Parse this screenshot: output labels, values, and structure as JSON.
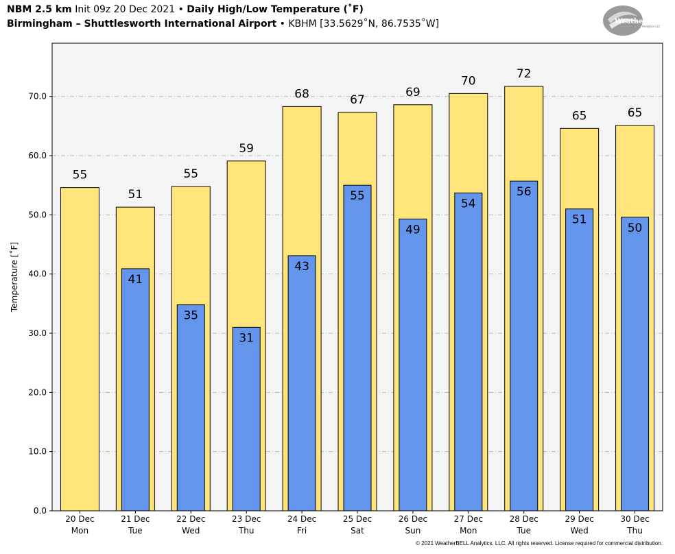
{
  "header": {
    "model": "NBM 2.5 km",
    "init": "Init 09z 20 Dec 2021",
    "separator": "•",
    "product": "Daily High/Low Temperature (˚F)",
    "location": "Birmingham – Shuttlesworth International Airport",
    "station": "KBHM [33.5629˚N, 86.7535˚W]"
  },
  "logo": {
    "text_main": "WeatherBELL",
    "text_sub": "Analytics LLC"
  },
  "copyright": "© 2021 WeatherBELL Analytics, LLC. All rights reserved. License required for commercial distribution.",
  "colors": {
    "high": "#FFE57A",
    "low": "#6495ED",
    "plot_bg": "#F4F4F4",
    "grid": "#BBBBBB"
  },
  "chart_data": {
    "type": "bar",
    "ylabel": "Temperature [˚F]",
    "xlabel": "",
    "ylim": [
      0,
      79
    ],
    "yticks": [
      "0.0",
      "10.0",
      "20.0",
      "30.0",
      "40.0",
      "50.0",
      "60.0",
      "70.0"
    ],
    "grid": true,
    "categories": [
      {
        "date": "20 Dec",
        "day": "Mon"
      },
      {
        "date": "21 Dec",
        "day": "Tue"
      },
      {
        "date": "22 Dec",
        "day": "Wed"
      },
      {
        "date": "23 Dec",
        "day": "Thu"
      },
      {
        "date": "24 Dec",
        "day": "Fri"
      },
      {
        "date": "25 Dec",
        "day": "Sat"
      },
      {
        "date": "26 Dec",
        "day": "Sun"
      },
      {
        "date": "27 Dec",
        "day": "Mon"
      },
      {
        "date": "28 Dec",
        "day": "Tue"
      },
      {
        "date": "29 Dec",
        "day": "Wed"
      },
      {
        "date": "30 Dec",
        "day": "Thu"
      }
    ],
    "series": [
      {
        "key": "high",
        "values": [
          54.6,
          51.3,
          54.8,
          59.1,
          68.3,
          67.3,
          68.6,
          70.5,
          71.7,
          64.6,
          65.1
        ],
        "labels": [
          "55",
          "51",
          "55",
          "59",
          "68",
          "67",
          "69",
          "70",
          "72",
          "65",
          "65"
        ]
      },
      {
        "key": "low",
        "values": [
          null,
          40.9,
          34.8,
          31.0,
          43.1,
          55.0,
          49.3,
          53.7,
          55.7,
          51.0,
          49.6
        ],
        "labels": [
          null,
          "41",
          "35",
          "31",
          "43",
          "55",
          "49",
          "54",
          "56",
          "51",
          "50"
        ]
      }
    ]
  }
}
